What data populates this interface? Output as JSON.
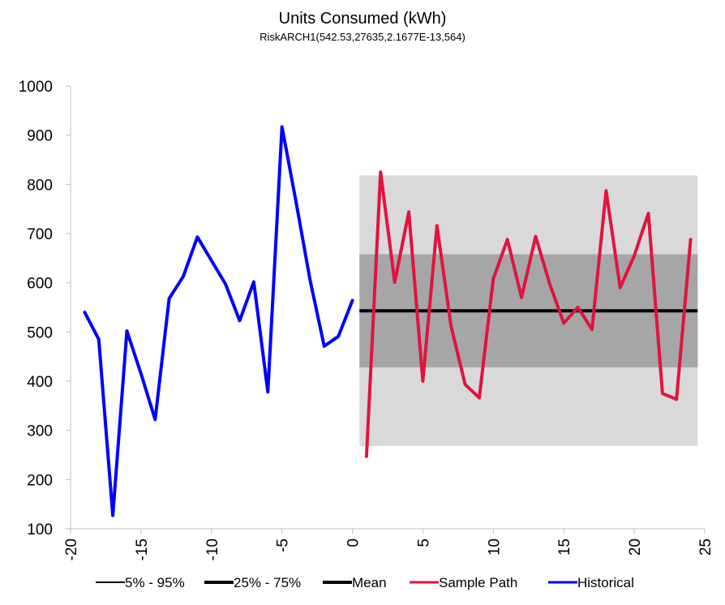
{
  "chart_data": {
    "type": "line",
    "title": "Units Consumed (kWh)",
    "subtitle": "RiskARCH1(542.53,27635,2.1677E-13,564)",
    "xlim": [
      -20,
      25
    ],
    "ylim": [
      100,
      1000
    ],
    "x_ticks": [
      -20,
      -15,
      -10,
      -5,
      0,
      5,
      10,
      15,
      20,
      25
    ],
    "y_ticks": [
      100,
      200,
      300,
      400,
      500,
      600,
      700,
      800,
      900,
      1000
    ],
    "x_tick_labels": [
      "-20",
      "-15",
      "-10",
      "-5",
      "0",
      "5",
      "10",
      "15",
      "20",
      "25"
    ],
    "y_tick_labels": [
      "100",
      "200",
      "300",
      "400",
      "500",
      "600",
      "700",
      "800",
      "900",
      "1000"
    ],
    "grid": false,
    "legend_position": "bottom",
    "bands": [
      {
        "name": "5% - 95%",
        "x_start": 0.5,
        "x_end": 24.5,
        "low": 268,
        "high": 818,
        "color": "#d9d9d9"
      },
      {
        "name": "25% - 75%",
        "x_start": 0.5,
        "x_end": 24.5,
        "low": 428,
        "high": 658,
        "color": "#a6a6a6"
      }
    ],
    "mean_line": {
      "name": "Mean",
      "x_start": 0.5,
      "x_end": 24.5,
      "value": 543,
      "color": "#000000"
    },
    "series": [
      {
        "name": "Historical",
        "color": "#0000ff",
        "x": [
          -19,
          -18,
          -17,
          -16,
          -15,
          -14,
          -13,
          -12,
          -11,
          -10,
          -9,
          -8,
          -7,
          -6,
          -5,
          -4,
          -3,
          -2,
          -1,
          0
        ],
        "values": [
          540,
          485,
          127,
          502,
          415,
          322,
          568,
          613,
          693,
          645,
          597,
          523,
          602,
          378,
          917,
          765,
          605,
          471,
          491,
          564
        ]
      },
      {
        "name": "Sample Path",
        "color": "#e0143c",
        "x": [
          1,
          2,
          3,
          4,
          5,
          6,
          7,
          8,
          9,
          10,
          11,
          12,
          13,
          14,
          15,
          16,
          17,
          18,
          19,
          20,
          21,
          22,
          23,
          24
        ],
        "values": [
          247,
          825,
          601,
          744,
          400,
          716,
          512,
          393,
          366,
          608,
          688,
          570,
          694,
          598,
          518,
          550,
          505,
          787,
          590,
          655,
          741,
          375,
          363,
          688
        ]
      }
    ],
    "legend": [
      {
        "label": "5% - 95%",
        "color": "#000000",
        "width": 2
      },
      {
        "label": "25% - 75%",
        "color": "#000000",
        "width": 4
      },
      {
        "label": "Mean",
        "color": "#000000",
        "width": 4
      },
      {
        "label": "Sample Path",
        "color": "#e0143c",
        "width": 3
      },
      {
        "label": "Historical",
        "color": "#0000ff",
        "width": 3
      }
    ]
  }
}
